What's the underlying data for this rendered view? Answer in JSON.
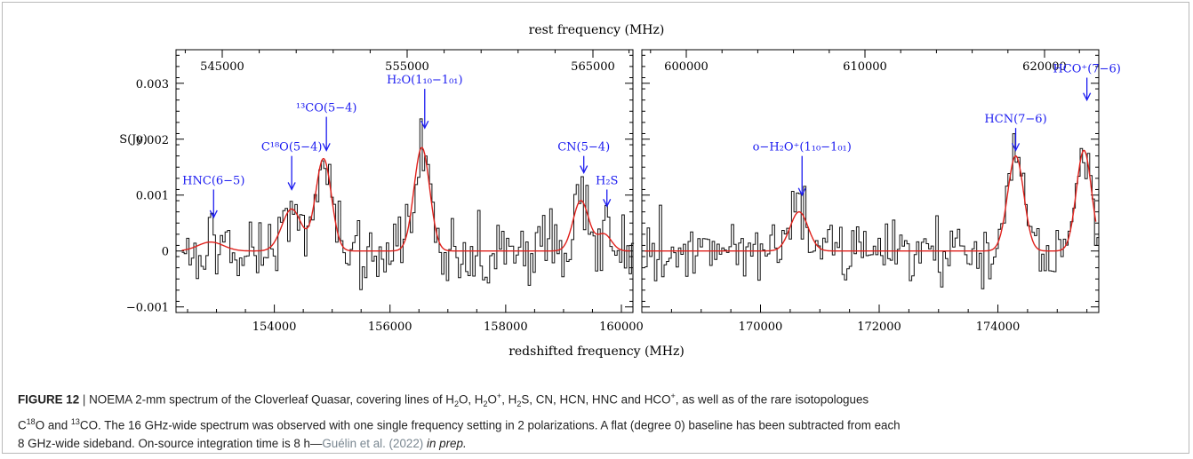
{
  "figure": {
    "label": "FIGURE 12",
    "caption_line1_pre": "NOEMA 2-mm spectrum of the Cloverleaf Quasar, covering lines of H",
    "caption_line1_rest": "O, H",
    "caption_line1_rest2": "O",
    "caption_line1_rest3": ", H",
    "caption_line1_rest4": "S, CN, HCN, HNC and HCO",
    "caption_line1_rest5": ", as well as of the rare isotopologues",
    "caption_line2_a": "C",
    "caption_line2_b": "18",
    "caption_line2_c": "O and ",
    "caption_line2_d": "13",
    "caption_line2_e": "CO. The 16 GHz-wide spectrum was observed with one single frequency setting in 2 polarizations. A flat (degree 0) baseline has been subtracted from each",
    "caption_line3_a": "8 GHz-wide sideband. On-source integration time is 8 h—",
    "caption_cite": "Guélin et al. (2022)",
    "caption_inprep": "in prep."
  },
  "chart_data": [
    {
      "type": "line",
      "panel": "left",
      "xlabel": "redshifted frequency (MHz)",
      "x2label": "rest frequency (MHz)",
      "ylabel": "S(Jy)",
      "xlim": [
        152300,
        160200
      ],
      "ylim": [
        -0.0011,
        0.0036
      ],
      "x_ticks": [
        154000,
        156000,
        158000,
        160000
      ],
      "x_tick_labels": [
        "154000",
        "156000",
        "158000",
        "160000"
      ],
      "top_ticks": [
        545000,
        555000,
        565000
      ],
      "top_tick_labels": [
        "545000",
        "555000",
        "565000"
      ],
      "y_ticks": [
        -0.001,
        0,
        0.001,
        0.002,
        0.003
      ],
      "y_tick_labels": [
        "−0.001",
        "0",
        "0.001",
        "0.002",
        "0.003"
      ],
      "fit_lines": [
        {
          "center": 152900,
          "amp": 0.00016,
          "fwhm": 520
        },
        {
          "center": 154300,
          "amp": 0.00075,
          "fwhm": 400
        },
        {
          "center": 154850,
          "amp": 0.00165,
          "fwhm": 320
        },
        {
          "center": 156550,
          "amp": 0.00185,
          "fwhm": 320
        },
        {
          "center": 159300,
          "amp": 0.0009,
          "fwhm": 320
        },
        {
          "center": 159700,
          "amp": 0.0003,
          "fwhm": 300
        }
      ],
      "annotations": [
        {
          "text": "HNC(6−5)",
          "x": 152950,
          "y_arrow_top": 0.0011,
          "y_arrow_bottom": 0.0006
        },
        {
          "text": "C¹⁸O(5−4)",
          "x": 154300,
          "y_arrow_top": 0.0017,
          "y_arrow_bottom": 0.0011
        },
        {
          "text": "¹³CO(5−4)",
          "x": 154900,
          "y_arrow_top": 0.0024,
          "y_arrow_bottom": 0.0018
        },
        {
          "text": "H₂O(1₁₀−1₀₁)",
          "x": 156600,
          "y_arrow_top": 0.0029,
          "y_arrow_bottom": 0.0022
        },
        {
          "text": "CN(5−4)",
          "x": 159350,
          "y_arrow_top": 0.0017,
          "y_arrow_bottom": 0.0014
        },
        {
          "text": "H₂S",
          "x": 159750,
          "y_arrow_top": 0.0011,
          "y_arrow_bottom": 0.0008
        }
      ]
    },
    {
      "type": "line",
      "panel": "right",
      "xlabel": "redshifted frequency (MHz)",
      "x2label": "rest frequency (MHz)",
      "xlim": [
        168000,
        175700
      ],
      "ylim": [
        -0.0011,
        0.0036
      ],
      "x_ticks": [
        170000,
        172000,
        174000
      ],
      "x_tick_labels": [
        "170000",
        "172000",
        "174000"
      ],
      "top_ticks": [
        600000,
        610000,
        620000
      ],
      "top_tick_labels": [
        "600000",
        "610000",
        "620000"
      ],
      "fit_lines": [
        {
          "center": 170650,
          "amp": 0.0007,
          "fwhm": 360
        },
        {
          "center": 174300,
          "amp": 0.0017,
          "fwhm": 320
        },
        {
          "center": 175450,
          "amp": 0.0018,
          "fwhm": 300
        }
      ],
      "annotations": [
        {
          "text": "o−H₂O⁺(1₁₀−1₀₁)",
          "x": 170700,
          "y_arrow_top": 0.0017,
          "y_arrow_bottom": 0.001
        },
        {
          "text": "HCN(7−6)",
          "x": 174300,
          "y_arrow_top": 0.0022,
          "y_arrow_bottom": 0.0018
        },
        {
          "text": "HCO⁺(7−6)",
          "x": 175500,
          "y_arrow_top": 0.0031,
          "y_arrow_bottom": 0.0027
        }
      ]
    }
  ],
  "colors": {
    "spectrum": "#111111",
    "fit": "#e0201b",
    "annotation": "#1c1cf0",
    "axis": "#000000"
  }
}
